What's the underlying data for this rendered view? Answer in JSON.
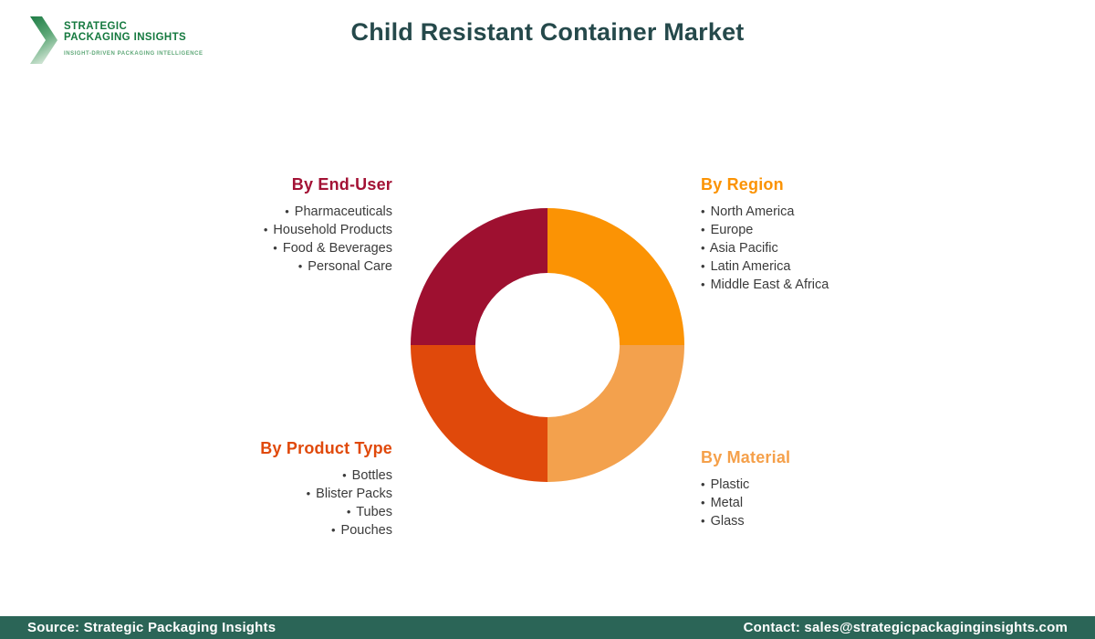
{
  "header": {
    "title": "Child Resistant Container Market",
    "logo": {
      "line1": "STRATEGIC",
      "line2": "PACKAGING INSIGHTS",
      "tagline": "INSIGHT-DRIVEN PACKAGING INTELLIGENCE"
    }
  },
  "colors": {
    "title": "#25494B",
    "logo_green": "#15793F",
    "logo_green_light": "#8CC79E",
    "tagline_green": "#5FA878",
    "list_text": "#3B3B3B",
    "footer_bg": "#2B6557",
    "footer_text": "#FFFFFF"
  },
  "chart_data": {
    "type": "pie",
    "donut": true,
    "title": "Child Resistant Container Market segmentation wheel",
    "inner_radius_ratio": 0.527,
    "start_angle_deg": -90,
    "direction": "clockwise",
    "legend_position": "corners",
    "segments": [
      {
        "label": "By Region",
        "value": 25,
        "color": "#FB9304"
      },
      {
        "label": "By Material",
        "value": 25,
        "color": "#F3A14D"
      },
      {
        "label": "By Product Type",
        "value": 25,
        "color": "#E0490B"
      },
      {
        "label": "By End-User",
        "value": 25,
        "color": "#9E1030"
      }
    ]
  },
  "categories": {
    "end_user": {
      "heading": "By End-User",
      "color": "#A31235",
      "items": [
        "Pharmaceuticals",
        "Household Products",
        "Food & Beverages",
        "Personal Care"
      ]
    },
    "region": {
      "heading": "By Region",
      "color": "#FB9304",
      "items": [
        "North America",
        "Europe",
        "Asia Pacific",
        "Latin America",
        "Middle East & Africa"
      ]
    },
    "product_type": {
      "heading": "By Product Type",
      "color": "#E0490B",
      "items": [
        "Bottles",
        "Blister Packs",
        "Tubes",
        "Pouches"
      ]
    },
    "material": {
      "heading": "By Material",
      "color": "#F5A04A",
      "items": [
        "Plastic",
        "Metal",
        "Glass"
      ]
    }
  },
  "footer": {
    "source": "Source: Strategic Packaging Insights",
    "contact": "Contact: sales@strategicpackaginginsights.com"
  }
}
